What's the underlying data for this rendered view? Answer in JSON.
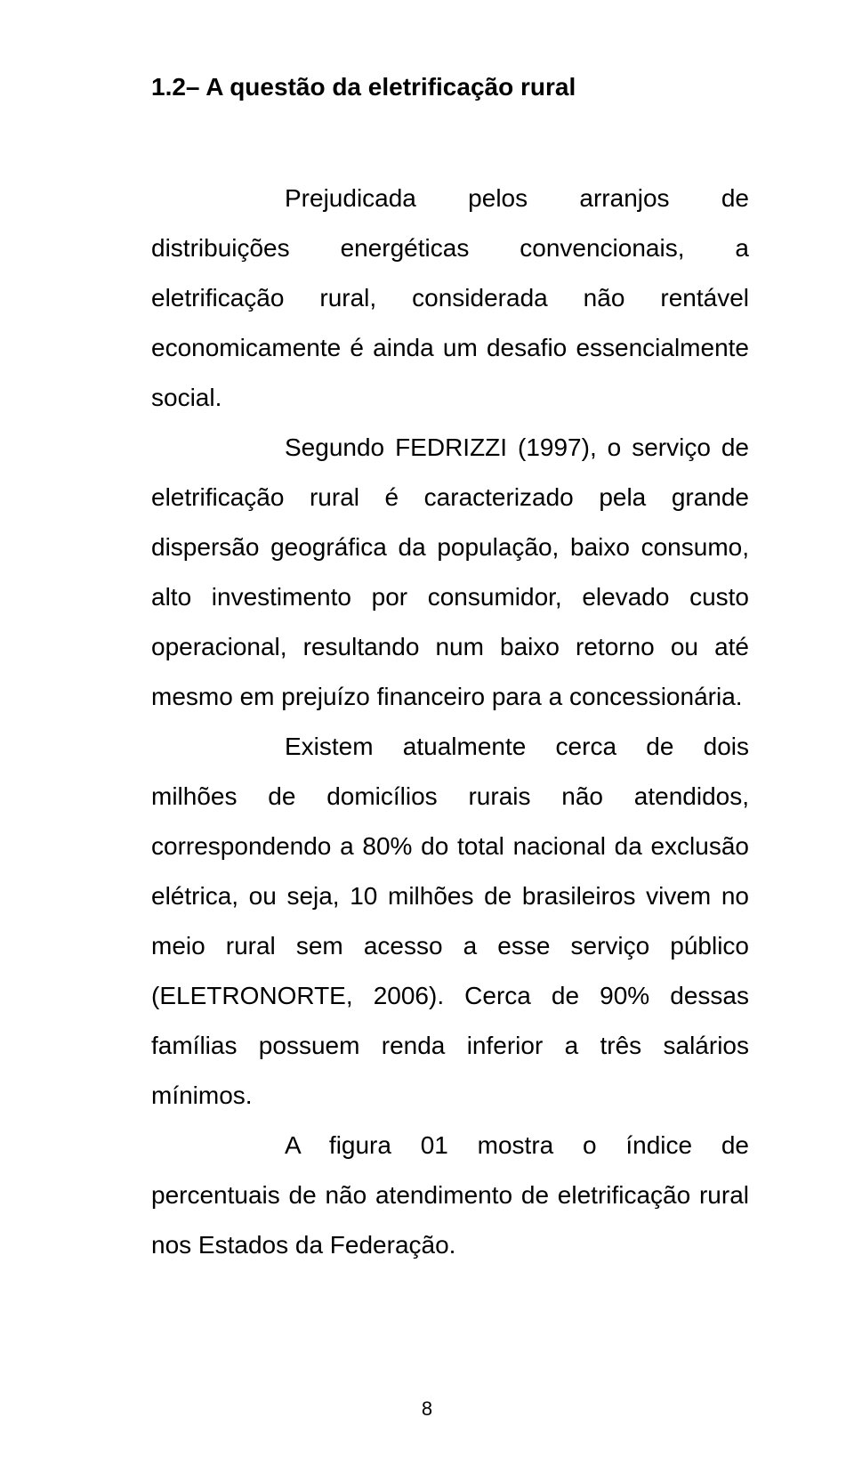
{
  "heading": "1.2– A questão da eletrificação rural",
  "p1": "Prejudicada pelos arranjos de distribuições energéticas convencionais, a eletrificação rural, considerada não rentável economicamente é ainda um desafio essencialmente social.",
  "p2": "Segundo FEDRIZZI (1997), o serviço de eletrificação rural é caracterizado pela grande dispersão geográfica da população, baixo consumo, alto investimento por consumidor, elevado custo operacional, resultando num baixo retorno ou até mesmo em prejuízo financeiro para a concessionária.",
  "p3": "Existem atualmente cerca de dois milhões de domicílios rurais não atendidos, correspondendo a 80% do total nacional da exclusão elétrica, ou seja, 10 milhões de brasileiros vivem no meio rural sem acesso a esse serviço público (ELETRONORTE, 2006). Cerca de 90% dessas famílias possuem renda inferior a três salários mínimos.",
  "p4": "A figura 01 mostra o índice de percentuais de não atendimento de eletrificação rural nos Estados da Federação.",
  "page_number": "8"
}
